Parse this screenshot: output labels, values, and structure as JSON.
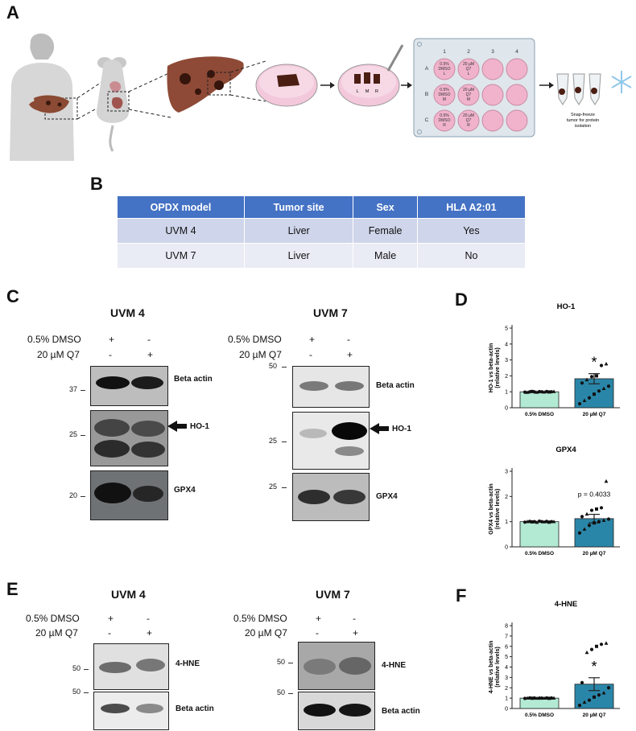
{
  "panels": {
    "a": "A",
    "b": "B",
    "c": "C",
    "d": "D",
    "e": "E",
    "f": "F"
  },
  "schematic": {
    "plate_cols": [
      "1",
      "2",
      "3",
      "4"
    ],
    "plate_rows": [
      "A",
      "B",
      "C"
    ],
    "plate_wells": [
      [
        "0.5%",
        "DMSO",
        "L"
      ],
      [
        "20 µM",
        "Q7",
        "L"
      ],
      [
        "0.5%",
        "DMSO",
        "M"
      ],
      [
        "20 µM",
        "Q7",
        "M"
      ],
      [
        "0.5%",
        "DMSO",
        "R"
      ],
      [
        "20 µM",
        "Q7",
        "R"
      ]
    ],
    "dish_labels": [
      "L",
      "M",
      "R"
    ],
    "snap_freeze": [
      "Snap-freeze",
      "tumor for protein",
      "isolation"
    ]
  },
  "table": {
    "headers": [
      "OPDX model",
      "Tumor site",
      "Sex",
      "HLA A2:01"
    ],
    "rows": [
      [
        "UVM 4",
        "Liver",
        "Female",
        "Yes"
      ],
      [
        "UVM 7",
        "Liver",
        "Male",
        "No"
      ]
    ]
  },
  "blots": {
    "c_uvm4": {
      "title": "UVM 4",
      "dmso_label": "0.5% DMSO",
      "q7_label": "20 µM Q7",
      "dmso_marks": [
        "+",
        "-"
      ],
      "q7_marks": [
        "-",
        "+"
      ],
      "beta": "Beta actin",
      "ho1": "HO-1",
      "gpx4": "GPX4",
      "mw": [
        "37",
        "25",
        "20"
      ]
    },
    "c_uvm7": {
      "title": "UVM 7",
      "dmso_label": "0.5% DMSO",
      "q7_label": "20 µM Q7",
      "dmso_marks": [
        "+",
        "-"
      ],
      "q7_marks": [
        "-",
        "+"
      ],
      "beta": "Beta actin",
      "ho1": "HO-1",
      "gpx4": "GPX4",
      "mw": [
        "50",
        "25",
        "25"
      ]
    },
    "e_uvm4": {
      "title": "UVM 4",
      "dmso_label": "0.5% DMSO",
      "q7_label": "20 µM Q7",
      "dmso_marks": [
        "+",
        "-"
      ],
      "q7_marks": [
        "-",
        "+"
      ],
      "hne": "4-HNE",
      "beta": "Beta actin",
      "mw": [
        "50",
        "50"
      ]
    },
    "e_uvm7": {
      "title": "UVM 7",
      "dmso_label": "0.5% DMSO",
      "q7_label": "20 µM Q7",
      "dmso_marks": [
        "+",
        "-"
      ],
      "q7_marks": [
        "-",
        "+"
      ],
      "hne": "4-HNE",
      "beta": "Beta actin",
      "mw": [
        "50",
        "50"
      ]
    }
  },
  "chart_data": [
    {
      "type": "bar",
      "title": "HO-1",
      "ylabel": "HO-1 vs beta-actin (relative levels)",
      "categories": [
        "0.5% DMSO",
        "20 µM Q7"
      ],
      "values": [
        1.0,
        1.82
      ],
      "errors": [
        0.0,
        0.32
      ],
      "ylim": [
        0,
        5
      ],
      "yticks": [
        0,
        1,
        2,
        3,
        4,
        5
      ],
      "annotation": "*",
      "points": [
        [
          0.98,
          0.96,
          1.0,
          1.02,
          0.99,
          0.97,
          1.01,
          1.0,
          0.98,
          1.02,
          0.99,
          1.0,
          1.01
        ],
        [
          0.25,
          0.45,
          0.62,
          0.85,
          1.05,
          1.2,
          1.35,
          1.55,
          1.75,
          1.95,
          2.0,
          2.65,
          2.75
        ]
      ],
      "colors": [
        "#b3ead4",
        "#2a86a8"
      ]
    },
    {
      "type": "bar",
      "title": "GPX4",
      "ylabel": "GPX4 vs beta-actin (relative levels)",
      "categories": [
        "0.5% DMSO",
        "20 µM Q7"
      ],
      "values": [
        1.0,
        1.12
      ],
      "errors": [
        0.0,
        0.17
      ],
      "ylim": [
        0,
        3
      ],
      "yticks": [
        0,
        1,
        2,
        3
      ],
      "annotation": "p = 0.4033",
      "points": [
        [
          0.98,
          1.0,
          1.01,
          0.99,
          1.0,
          0.97,
          1.02,
          1.0,
          0.99,
          1.01,
          0.98,
          1.0,
          1.0
        ],
        [
          0.55,
          0.7,
          0.85,
          0.95,
          1.0,
          1.05,
          1.1,
          1.2,
          1.3,
          1.45,
          1.5,
          1.55,
          2.6
        ]
      ],
      "colors": [
        "#b3ead4",
        "#2a86a8"
      ]
    },
    {
      "type": "bar",
      "title": "4-HNE",
      "ylabel": "4-HNE vs beta-actin (relative levels)",
      "categories": [
        "0.5% DMSO",
        "20 µM Q7"
      ],
      "values": [
        1.0,
        2.35
      ],
      "errors": [
        0.0,
        0.62
      ],
      "ylim": [
        0,
        8
      ],
      "yticks": [
        0,
        1,
        2,
        3,
        4,
        5,
        6,
        7,
        8
      ],
      "annotation": "*",
      "points": [
        [
          0.97,
          1.0,
          1.02,
          0.99,
          1.01,
          0.98,
          1.0,
          1.0,
          0.99,
          1.02,
          0.98,
          1.01,
          1.0
        ],
        [
          0.3,
          0.6,
          0.8,
          1.1,
          1.3,
          1.5,
          2.0,
          2.5,
          5.4,
          5.7,
          6.0,
          6.2,
          6.3
        ]
      ],
      "colors": [
        "#b3ead4",
        "#2a86a8"
      ]
    }
  ]
}
